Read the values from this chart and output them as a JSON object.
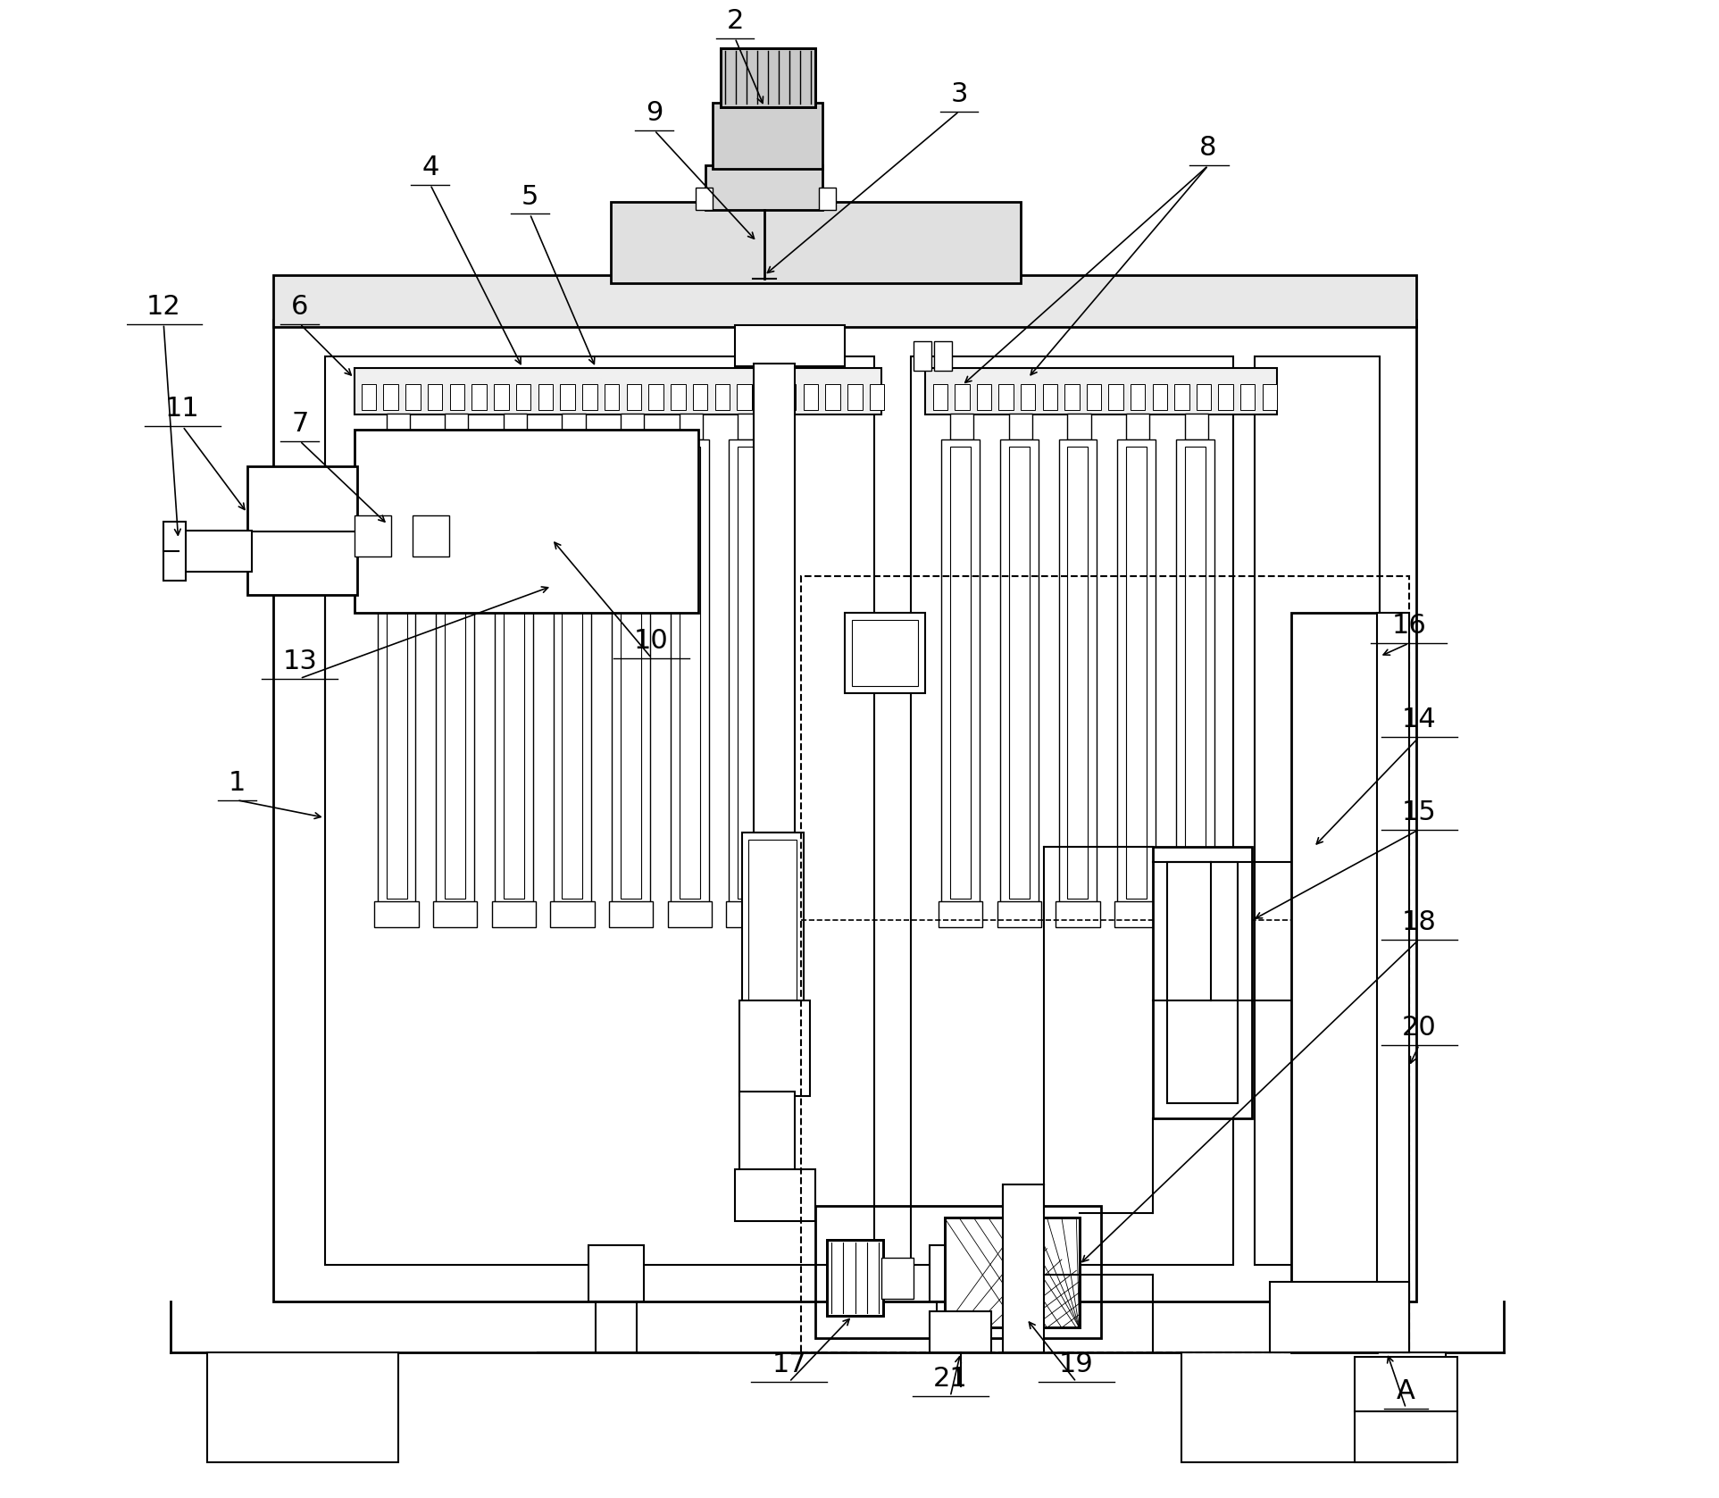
{
  "background": "#ffffff",
  "line_color": "#000000",
  "line_width": 1.5,
  "label_fontsize": 22
}
